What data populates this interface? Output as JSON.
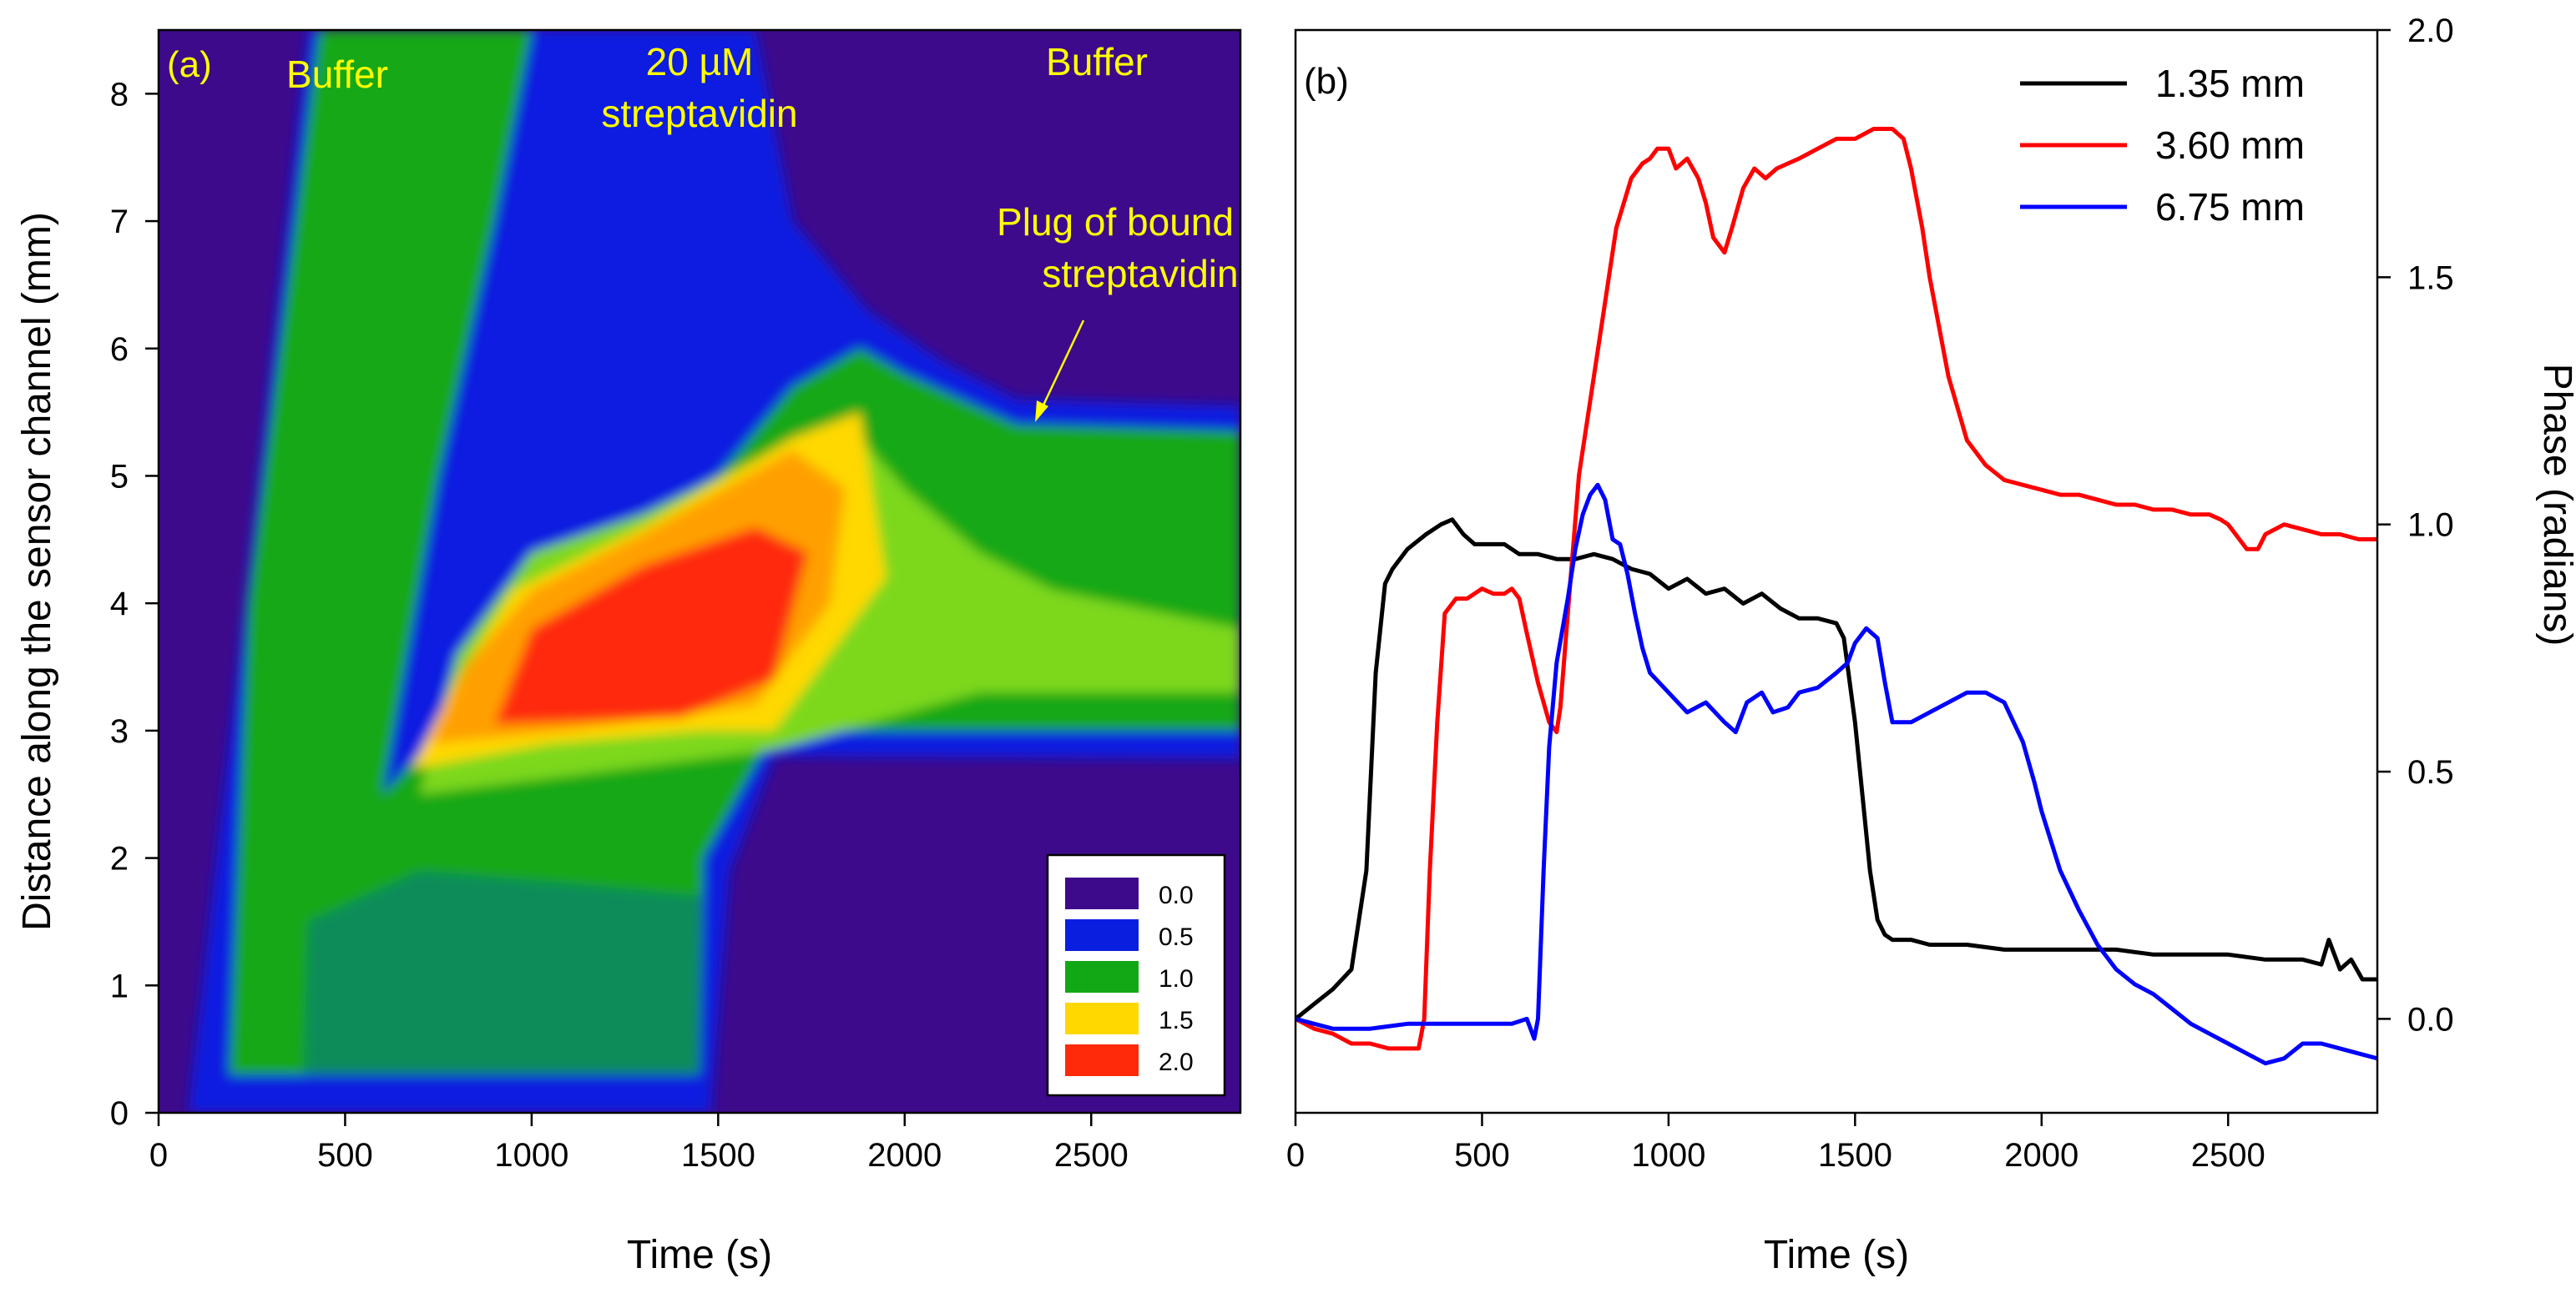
{
  "chart_data": [
    {
      "type": "heatmap",
      "panel_label": "(a)",
      "xlabel": "Time (s)",
      "ylabel": "Distance along the sensor channel (mm)",
      "xlim": [
        0,
        2900
      ],
      "ylim": [
        0,
        8.5
      ],
      "xticks": [
        0,
        500,
        1000,
        1500,
        2000,
        2500
      ],
      "yticks": [
        0,
        1,
        2,
        3,
        4,
        5,
        6,
        7,
        8
      ],
      "annotations": {
        "buffer_left": "Buffer",
        "sample_line1": "20 µM",
        "sample_line2": "streptavidin",
        "buffer_right": "Buffer",
        "plug_line1": "Plug of bound",
        "plug_line2": "streptavidin"
      },
      "legend": {
        "placement": "bottom-right",
        "levels": [
          0.0,
          0.5,
          1.0,
          1.5,
          2.0
        ],
        "labels": [
          "0.0",
          "0.5",
          "1.0",
          "1.5",
          "2.0"
        ],
        "colors": [
          "#3d0a8c",
          "#0a1ee0",
          "#12a815",
          "#ffd800",
          "#ff2a0a"
        ]
      },
      "colors": {
        "c0": "#3d0a8c",
        "c05": "#0a1ee0",
        "c08": "#0a8c5a",
        "c1": "#12a815",
        "c125": "#7dd81e",
        "c15": "#ffd800",
        "c175": "#ffa000",
        "c2": "#ff2a0a",
        "annotation": "#ffff00"
      }
    },
    {
      "type": "line",
      "panel_label": "(b)",
      "xlabel": "Time (s)",
      "ylabel": "Phase (radians)",
      "xlim": [
        0,
        2900
      ],
      "ylim": [
        -0.19,
        2.0
      ],
      "xticks": [
        0,
        500,
        1000,
        1500,
        2000,
        2500
      ],
      "yticks": [
        0.0,
        0.5,
        1.0,
        1.5,
        2.0
      ],
      "legend_placement": "top-right",
      "series": [
        {
          "name": "1.35 mm",
          "color": "#000000",
          "x": [
            0,
            50,
            100,
            150,
            190,
            215,
            240,
            260,
            300,
            350,
            390,
            420,
            450,
            480,
            520,
            560,
            600,
            650,
            700,
            750,
            800,
            850,
            900,
            950,
            1000,
            1050,
            1100,
            1150,
            1200,
            1250,
            1300,
            1350,
            1400,
            1450,
            1470,
            1500,
            1520,
            1540,
            1560,
            1580,
            1600,
            1650,
            1700,
            1800,
            1900,
            2000,
            2100,
            2200,
            2300,
            2400,
            2500,
            2600,
            2700,
            2750,
            2770,
            2800,
            2830,
            2860,
            2900
          ],
          "values": [
            0.0,
            0.03,
            0.06,
            0.1,
            0.3,
            0.7,
            0.88,
            0.91,
            0.95,
            0.98,
            1.0,
            1.01,
            0.98,
            0.96,
            0.96,
            0.96,
            0.94,
            0.94,
            0.93,
            0.93,
            0.94,
            0.93,
            0.91,
            0.9,
            0.87,
            0.89,
            0.86,
            0.87,
            0.84,
            0.86,
            0.83,
            0.81,
            0.81,
            0.8,
            0.77,
            0.6,
            0.45,
            0.3,
            0.2,
            0.17,
            0.16,
            0.16,
            0.15,
            0.15,
            0.14,
            0.14,
            0.14,
            0.14,
            0.13,
            0.13,
            0.13,
            0.12,
            0.12,
            0.11,
            0.16,
            0.1,
            0.12,
            0.08,
            0.08
          ]
        },
        {
          "name": "3.60 mm",
          "color": "#ff0000",
          "x": [
            0,
            50,
            100,
            150,
            200,
            250,
            300,
            330,
            345,
            360,
            380,
            400,
            430,
            460,
            500,
            530,
            560,
            580,
            600,
            620,
            650,
            680,
            700,
            710,
            730,
            760,
            800,
            830,
            860,
            900,
            930,
            950,
            970,
            1000,
            1020,
            1050,
            1080,
            1100,
            1120,
            1150,
            1170,
            1200,
            1230,
            1260,
            1290,
            1320,
            1350,
            1400,
            1450,
            1500,
            1550,
            1600,
            1630,
            1650,
            1680,
            1700,
            1750,
            1800,
            1850,
            1900,
            1950,
            2000,
            2050,
            2100,
            2150,
            2200,
            2250,
            2300,
            2350,
            2400,
            2450,
            2480,
            2500,
            2520,
            2550,
            2580,
            2600,
            2650,
            2700,
            2750,
            2800,
            2850,
            2900
          ],
          "values": [
            0.0,
            -0.02,
            -0.03,
            -0.05,
            -0.05,
            -0.06,
            -0.06,
            -0.06,
            0.0,
            0.3,
            0.6,
            0.82,
            0.85,
            0.85,
            0.87,
            0.86,
            0.86,
            0.87,
            0.85,
            0.78,
            0.68,
            0.6,
            0.58,
            0.63,
            0.82,
            1.1,
            1.3,
            1.45,
            1.6,
            1.7,
            1.73,
            1.74,
            1.76,
            1.76,
            1.72,
            1.74,
            1.7,
            1.65,
            1.58,
            1.55,
            1.6,
            1.68,
            1.72,
            1.7,
            1.72,
            1.73,
            1.74,
            1.76,
            1.78,
            1.78,
            1.8,
            1.8,
            1.78,
            1.72,
            1.6,
            1.5,
            1.3,
            1.17,
            1.12,
            1.09,
            1.08,
            1.07,
            1.06,
            1.06,
            1.05,
            1.04,
            1.04,
            1.03,
            1.03,
            1.02,
            1.02,
            1.01,
            1.0,
            0.98,
            0.95,
            0.95,
            0.98,
            1.0,
            0.99,
            0.98,
            0.98,
            0.97,
            0.97
          ]
        },
        {
          "name": "6.75 mm",
          "color": "#0000ff",
          "x": [
            0,
            100,
            200,
            300,
            400,
            500,
            580,
            620,
            640,
            650,
            665,
            680,
            700,
            730,
            750,
            770,
            790,
            810,
            830,
            850,
            870,
            890,
            910,
            930,
            950,
            1000,
            1050,
            1100,
            1150,
            1180,
            1210,
            1250,
            1280,
            1320,
            1350,
            1400,
            1450,
            1480,
            1500,
            1530,
            1560,
            1580,
            1600,
            1650,
            1700,
            1750,
            1800,
            1850,
            1900,
            1950,
            1980,
            2000,
            2050,
            2100,
            2150,
            2200,
            2250,
            2300,
            2350,
            2400,
            2450,
            2500,
            2550,
            2600,
            2650,
            2700,
            2750,
            2800,
            2850,
            2900
          ],
          "values": [
            0.0,
            -0.02,
            -0.02,
            -0.01,
            -0.01,
            -0.01,
            -0.01,
            0.0,
            -0.04,
            0.0,
            0.3,
            0.55,
            0.72,
            0.85,
            0.95,
            1.02,
            1.06,
            1.08,
            1.05,
            0.97,
            0.96,
            0.9,
            0.82,
            0.75,
            0.7,
            0.66,
            0.62,
            0.64,
            0.6,
            0.58,
            0.64,
            0.66,
            0.62,
            0.63,
            0.66,
            0.67,
            0.7,
            0.72,
            0.76,
            0.79,
            0.77,
            0.68,
            0.6,
            0.6,
            0.62,
            0.64,
            0.66,
            0.66,
            0.64,
            0.56,
            0.48,
            0.42,
            0.3,
            0.22,
            0.15,
            0.1,
            0.07,
            0.05,
            0.02,
            -0.01,
            -0.03,
            -0.05,
            -0.07,
            -0.09,
            -0.08,
            -0.05,
            -0.05,
            -0.06,
            -0.07,
            -0.08
          ]
        }
      ]
    }
  ]
}
